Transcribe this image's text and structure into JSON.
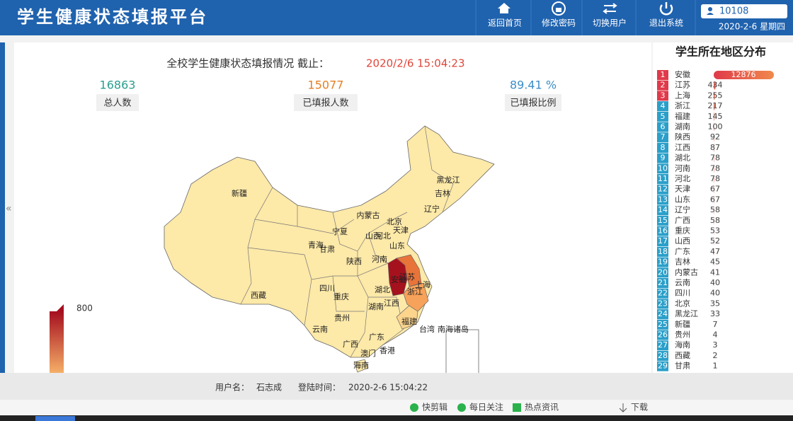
{
  "header": {
    "title": "学生健康状态填报平台",
    "nav": [
      "返回首页",
      "修改密码",
      "切换用户",
      "退出系统"
    ],
    "user": "10108",
    "date": "2020-2-6 星期四"
  },
  "summary": {
    "title": "全校学生健康状态填报情况 截止：",
    "timestamp": "2020/2/6 15:04:23",
    "stats": [
      {
        "value": "16863",
        "label": "总人数"
      },
      {
        "value": "15077",
        "label": "已填报人数"
      },
      {
        "value": "89.41 %",
        "label": "已填报比例"
      }
    ]
  },
  "map": {
    "legend_max": "800",
    "labels": [
      "新疆",
      "西藏",
      "青海",
      "甘肃",
      "宁夏",
      "内蒙古",
      "黑龙江",
      "吉林",
      "辽宁",
      "北京",
      "天津",
      "河北",
      "山西",
      "山东",
      "陕西",
      "河南",
      "安徽",
      "江苏",
      "上海",
      "浙江",
      "湖北",
      "四川",
      "重庆",
      "湖南",
      "江西",
      "贵州",
      "云南",
      "福建",
      "广西",
      "广东",
      "台湾",
      "南海诸岛",
      "澳门",
      "香港",
      "海南"
    ]
  },
  "ranking": {
    "title": "学生所在地区分布",
    "items": [
      {
        "rank": "1",
        "name": "安徽",
        "value": 12876
      },
      {
        "rank": "2",
        "name": "江苏",
        "value": 434
      },
      {
        "rank": "3",
        "name": "上海",
        "value": 255
      },
      {
        "rank": "4",
        "name": "浙江",
        "value": 217
      },
      {
        "rank": "5",
        "name": "福建",
        "value": 145
      },
      {
        "rank": "6",
        "name": "湖南",
        "value": 100
      },
      {
        "rank": "7",
        "name": "陕西",
        "value": 92
      },
      {
        "rank": "8",
        "name": "江西",
        "value": 87
      },
      {
        "rank": "9",
        "name": "湖北",
        "value": 78
      },
      {
        "rank": "10",
        "name": "河南",
        "value": 78
      },
      {
        "rank": "11",
        "name": "河北",
        "value": 78
      },
      {
        "rank": "12",
        "name": "天津",
        "value": 67
      },
      {
        "rank": "13",
        "name": "山东",
        "value": 67
      },
      {
        "rank": "14",
        "name": "辽宁",
        "value": 58
      },
      {
        "rank": "15",
        "name": "广西",
        "value": 58
      },
      {
        "rank": "16",
        "name": "重庆",
        "value": 53
      },
      {
        "rank": "17",
        "name": "山西",
        "value": 52
      },
      {
        "rank": "18",
        "name": "广东",
        "value": 47
      },
      {
        "rank": "19",
        "name": "吉林",
        "value": 45
      },
      {
        "rank": "20",
        "name": "内蒙古",
        "value": 41
      },
      {
        "rank": "21",
        "name": "云南",
        "value": 40
      },
      {
        "rank": "22",
        "name": "四川",
        "value": 40
      },
      {
        "rank": "23",
        "name": "北京",
        "value": 35
      },
      {
        "rank": "24",
        "name": "黑龙江",
        "value": 33
      },
      {
        "rank": "25",
        "name": "新疆",
        "value": 7
      },
      {
        "rank": "26",
        "name": "贵州",
        "value": 4
      },
      {
        "rank": "27",
        "name": "海南",
        "value": 3
      },
      {
        "rank": "28",
        "name": "西藏",
        "value": 2
      },
      {
        "rank": "29",
        "name": "甘肃",
        "value": 1
      }
    ]
  },
  "footer": {
    "user_label": "用户名：",
    "user": "石志成",
    "login_label": "登陆时间：",
    "login_time": "2020-2-6 15:04:22"
  },
  "taskbar": [
    "快剪辑",
    "每日关注",
    "热点资讯",
    "下载"
  ]
}
